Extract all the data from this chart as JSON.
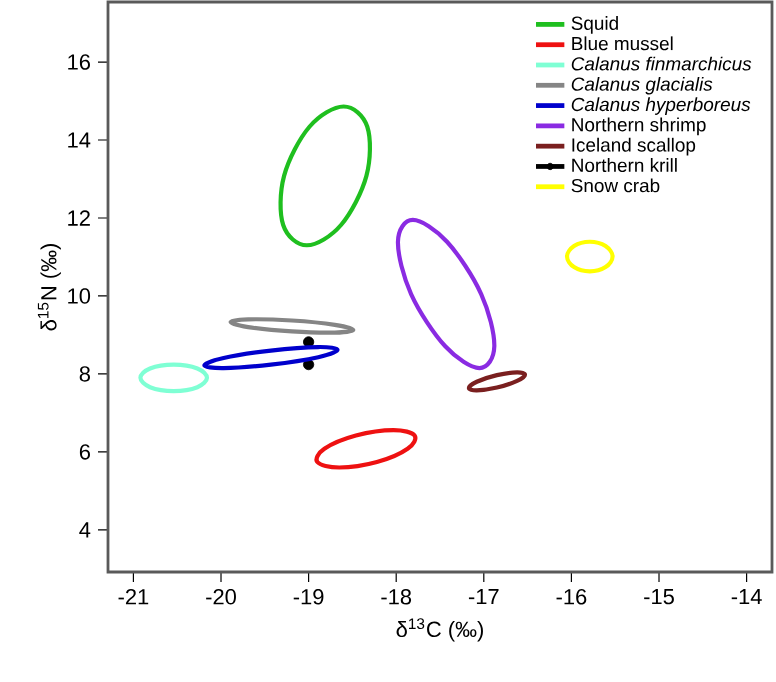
{
  "chart_data": {
    "type": "scatter",
    "xlabel": "δ$^{13}$C (‰)",
    "ylabel": "δ$^{15}$N (‰)",
    "xlim": [
      -21.29,
      -13.71
    ],
    "ylim": [
      2.92,
      17.54
    ],
    "xticks": [
      -21,
      -20,
      -19,
      -18,
      -17,
      -16,
      -15,
      -14
    ],
    "yticks": [
      4,
      6,
      8,
      10,
      12,
      14,
      16
    ],
    "grid": false,
    "legend": "top right",
    "series": [
      {
        "name": "Squid",
        "color": "#1fbf1f"
      },
      {
        "name": "Blue mussel",
        "color": "#ee1111"
      },
      {
        "name": "*Calanus finmarchicus*",
        "color": "#7fffd4"
      },
      {
        "name": "*Calanus glacialis*",
        "color": "#858585"
      },
      {
        "name": "*Calanus hyperboreus*",
        "color": "#0000cc"
      },
      {
        "name": "Northern shrimp",
        "color": "#8a2be2"
      },
      {
        "name": "Iceland scallop",
        "color": "#7a1f1f"
      },
      {
        "name": "Northern krill",
        "color": "#000000",
        "marker": "circle",
        "x": [
          -19.0,
          -19.0
        ],
        "values": [
          8.82,
          8.24
        ]
      },
      {
        "name": "Snow crab",
        "color": "#ffff00"
      }
    ]
  }
}
